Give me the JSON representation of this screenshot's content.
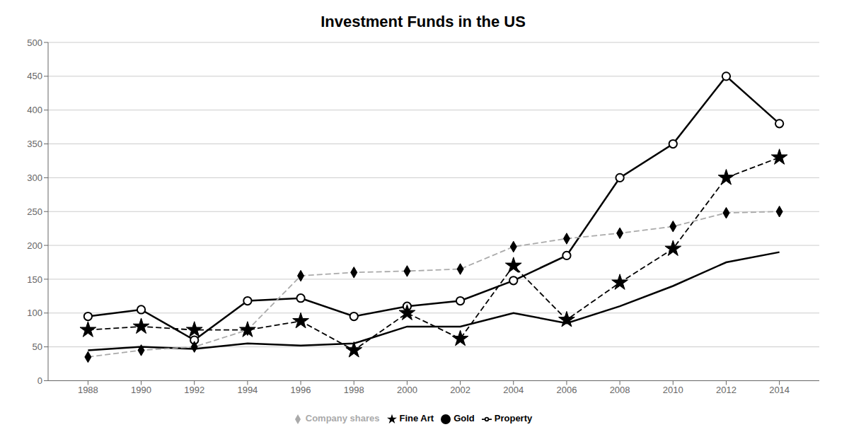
{
  "chart_data": {
    "type": "line",
    "title": "Investment Funds in the US",
    "x": [
      1988,
      1990,
      1992,
      1994,
      1996,
      1998,
      2000,
      2002,
      2004,
      2006,
      2008,
      2010,
      2012,
      2014
    ],
    "series": [
      {
        "name": "Property",
        "color": "#000000",
        "line_style": "solid",
        "values": [
          45,
          50,
          47,
          55,
          52,
          55,
          80,
          80,
          100,
          85,
          110,
          140,
          175,
          190
        ]
      },
      {
        "name": "Gold",
        "color": "#000000",
        "line_style": "solid",
        "marker": "circle",
        "values": [
          95,
          105,
          60,
          118,
          122,
          95,
          110,
          118,
          148,
          185,
          300,
          350,
          450,
          380
        ]
      },
      {
        "name": "Fine Art",
        "color": "#000000",
        "line_style": "dashed",
        "marker": "star",
        "values": [
          75,
          80,
          75,
          75,
          88,
          45,
          100,
          62,
          170,
          90,
          145,
          195,
          300,
          330
        ]
      },
      {
        "name": "Company shares",
        "color": "#aaaaaa",
        "line_style": "dashed",
        "marker": "diamond",
        "values": [
          35,
          45,
          50,
          75,
          155,
          160,
          162,
          165,
          198,
          210,
          218,
          228,
          248,
          250
        ]
      }
    ],
    "xlim": [
      1986.5,
      2015.5
    ],
    "xticks": [
      1988,
      1990,
      1992,
      1994,
      1996,
      1998,
      2000,
      2002,
      2004,
      2006,
      2008,
      2010,
      2012,
      2014
    ],
    "ylim": [
      0,
      500
    ],
    "yticks": [
      0,
      50,
      100,
      150,
      200,
      250,
      300,
      350,
      400,
      450,
      500
    ],
    "grid": "y",
    "legend": "bottom"
  }
}
